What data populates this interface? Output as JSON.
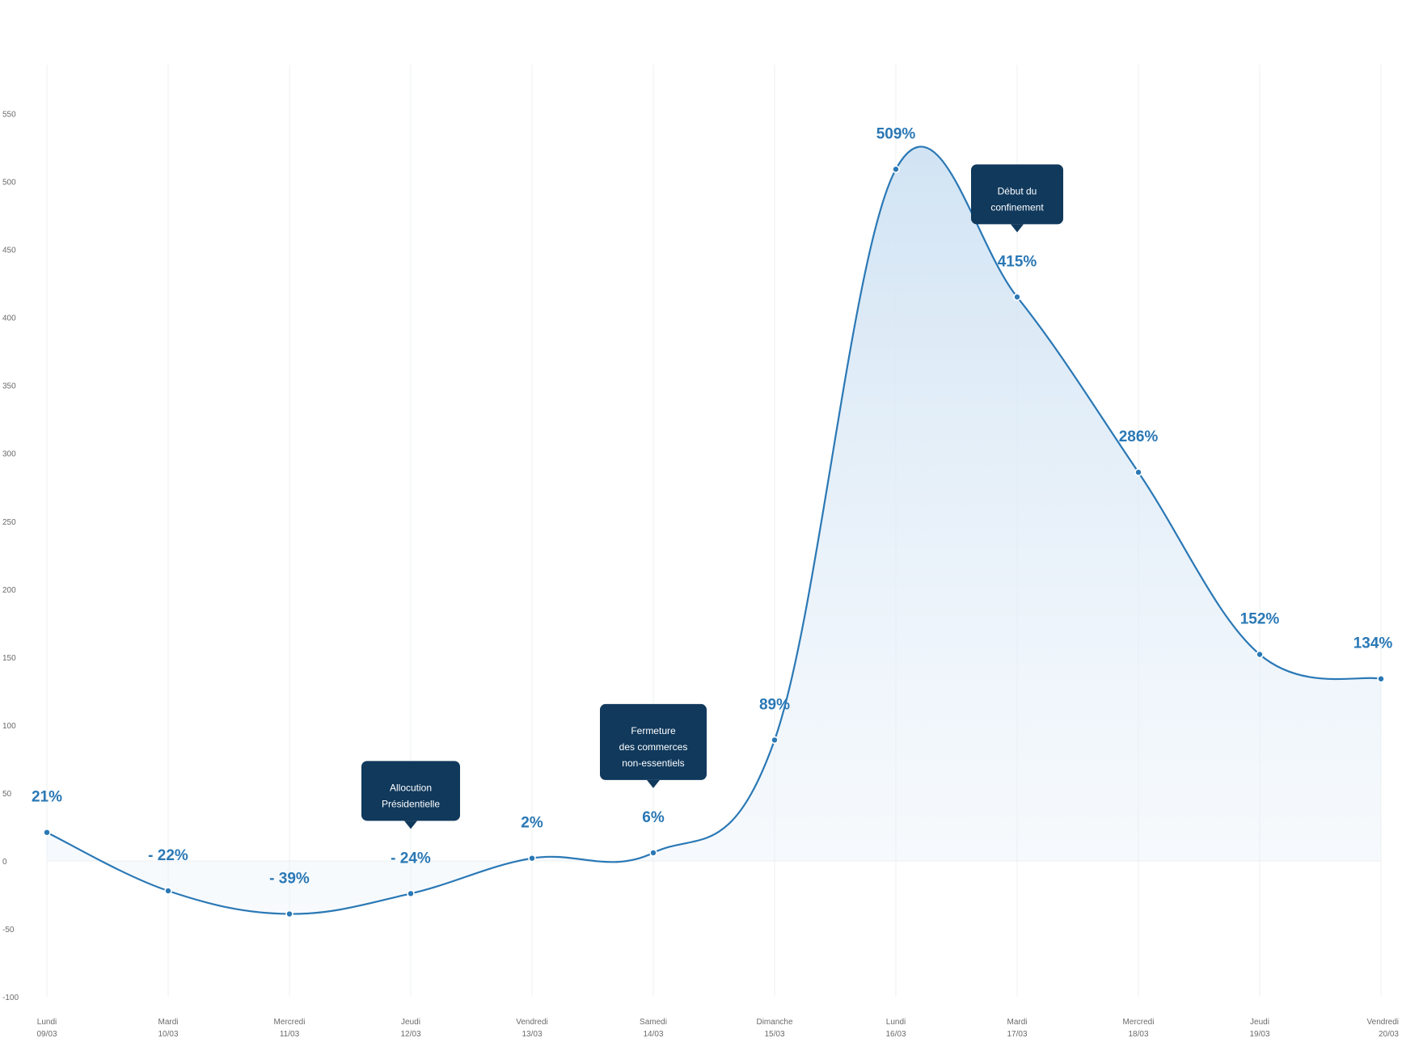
{
  "colors": {
    "line": "#2a78b5",
    "label": "#2a78b5",
    "annotation_bg": "#10395c",
    "grid": "#eef0f2",
    "tick_text": "#6b6b6b"
  },
  "chart_data": {
    "type": "area",
    "title": "",
    "xlabel": "",
    "ylabel": "",
    "ylim": [
      -100,
      550
    ],
    "yticks": [
      -100,
      -50,
      0,
      50,
      100,
      150,
      200,
      250,
      300,
      350,
      400,
      450,
      500,
      550
    ],
    "grid": true,
    "categories": [
      {
        "day": "Lundi",
        "date": "09/03"
      },
      {
        "day": "Mardi",
        "date": "10/03"
      },
      {
        "day": "Mercredi",
        "date": "11/03"
      },
      {
        "day": "Jeudi",
        "date": "12/03"
      },
      {
        "day": "Vendredi",
        "date": "13/03"
      },
      {
        "day": "Samedi",
        "date": "14/03"
      },
      {
        "day": "Dimanche",
        "date": "15/03"
      },
      {
        "day": "Lundi",
        "date": "16/03"
      },
      {
        "day": "Mardi",
        "date": "17/03"
      },
      {
        "day": "Mercredi",
        "date": "18/03"
      },
      {
        "day": "Jeudi",
        "date": "19/03"
      },
      {
        "day": "Vendredi",
        "date": "20/03"
      }
    ],
    "values": [
      21,
      -22,
      -39,
      -24,
      2,
      6,
      89,
      509,
      415,
      286,
      152,
      134
    ],
    "value_labels": [
      "21%",
      "- 22%",
      "- 39%",
      "- 24%",
      "2%",
      "6%",
      "89%",
      "509%",
      "415%",
      "286%",
      "152%",
      "134%"
    ],
    "annotations": [
      {
        "index": 3,
        "lines": [
          "Allocution",
          "Présidentielle"
        ]
      },
      {
        "index": 5,
        "lines": [
          "Fermeture",
          "des commerces",
          "non-essentiels"
        ]
      },
      {
        "index": 8,
        "lines": [
          "Début du",
          "confinement"
        ]
      }
    ]
  }
}
